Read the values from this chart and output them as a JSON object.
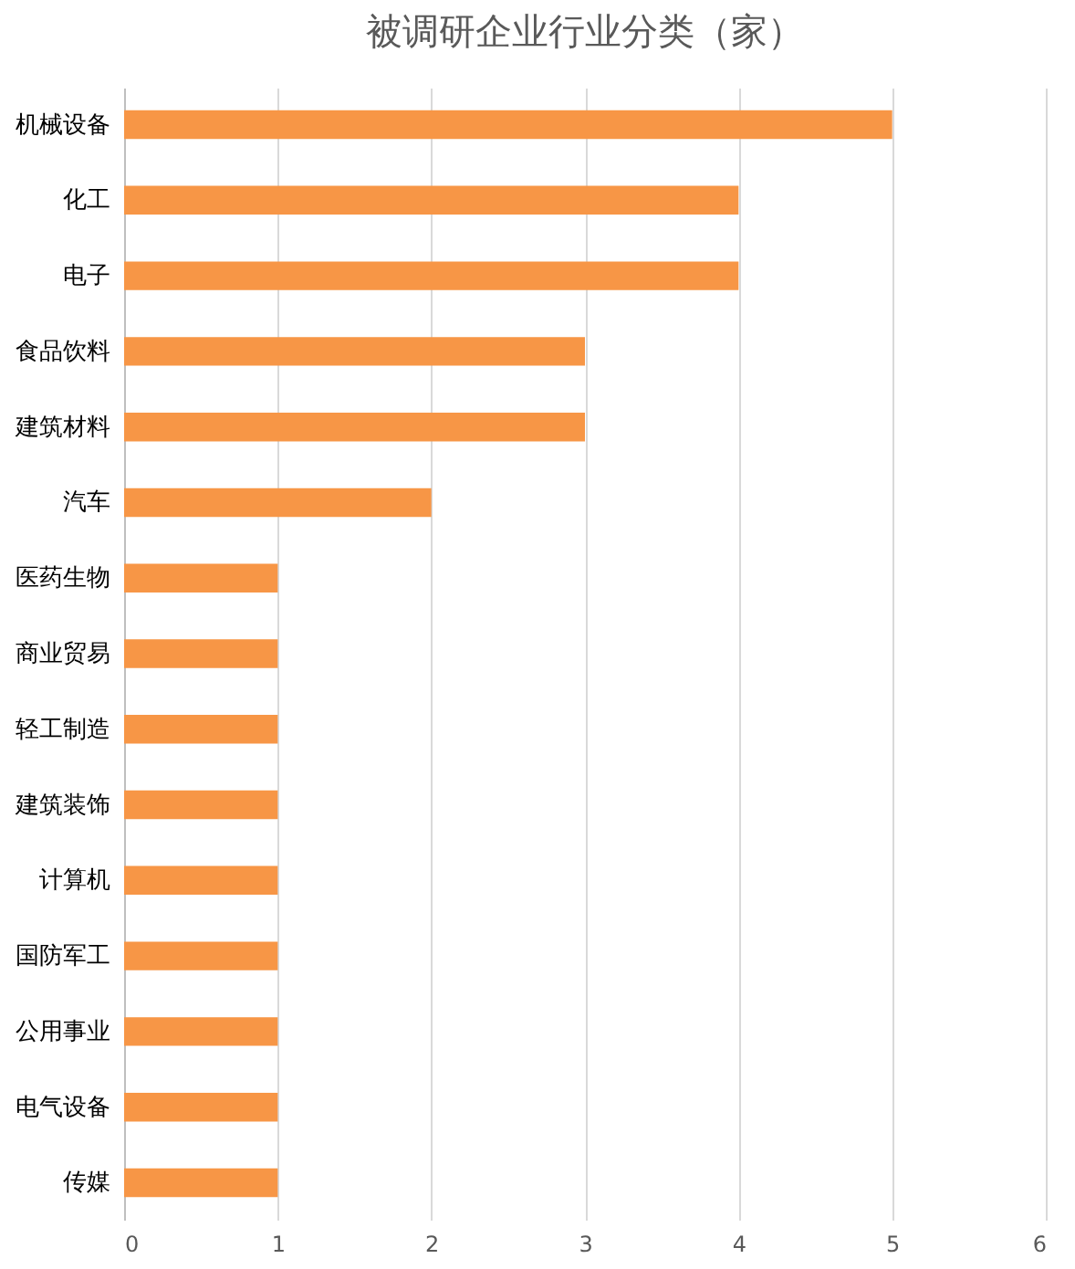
{
  "chart_data": {
    "type": "bar",
    "orientation": "horizontal",
    "title": "被调研企业行业分类（家）",
    "categories": [
      "机械设备",
      "化工",
      "电子",
      "食品饮料",
      "建筑材料",
      "汽车",
      "医药生物",
      "商业贸易",
      "轻工制造",
      "建筑装饰",
      "计算机",
      "国防军工",
      "公用事业",
      "电气设备",
      "传媒"
    ],
    "values": [
      5,
      4,
      4,
      3,
      3,
      2,
      1,
      1,
      1,
      1,
      1,
      1,
      1,
      1,
      1
    ],
    "color": "#f79646",
    "xlim": [
      0,
      6
    ],
    "xticks": [
      0,
      1,
      2,
      3,
      4,
      5,
      6
    ],
    "grid": "x"
  }
}
